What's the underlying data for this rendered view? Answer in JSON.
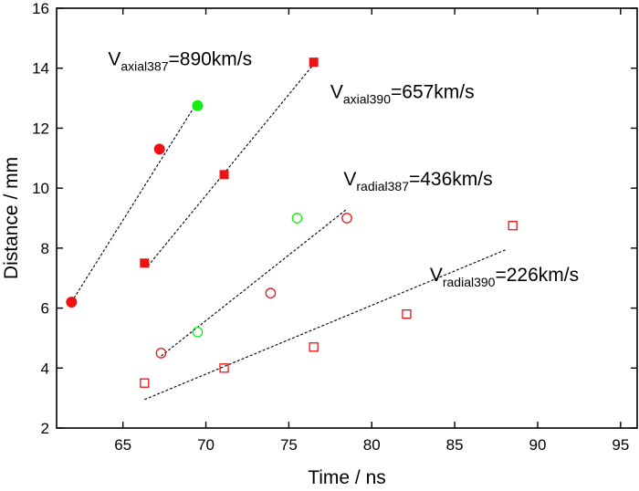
{
  "chart_data": {
    "type": "scatter",
    "title": "",
    "xlabel": "Time / ns",
    "ylabel": "Distance / mm",
    "xlim": [
      61,
      96
    ],
    "ylim": [
      2,
      16
    ],
    "xticks": [
      65,
      70,
      75,
      80,
      85,
      90,
      95
    ],
    "yticks": [
      2,
      4,
      6,
      8,
      10,
      12,
      14,
      16
    ],
    "grid": false,
    "legend": "none",
    "series": [
      {
        "id": "axial387-red",
        "marker": "filled-circle",
        "color": "#ee1111",
        "points": [
          [
            61.9,
            6.2
          ],
          [
            67.2,
            11.3
          ]
        ]
      },
      {
        "id": "axial387-green",
        "marker": "filled-circle",
        "color": "#11ee11",
        "points": [
          [
            69.5,
            12.75
          ]
        ]
      },
      {
        "id": "axial390",
        "marker": "filled-square",
        "color": "#ee1111",
        "points": [
          [
            66.3,
            7.5
          ],
          [
            71.1,
            10.45
          ],
          [
            76.5,
            14.2
          ]
        ]
      },
      {
        "id": "radial387-red",
        "marker": "open-circle",
        "color": "#ee1111",
        "points": [
          [
            67.3,
            4.5
          ],
          [
            73.9,
            6.5
          ],
          [
            78.5,
            9.0
          ]
        ]
      },
      {
        "id": "radial387-green",
        "marker": "open-circle",
        "color": "#11ee11",
        "points": [
          [
            69.5,
            5.2
          ],
          [
            75.5,
            9.0
          ]
        ]
      },
      {
        "id": "radial390",
        "marker": "open-square",
        "color": "#ee1111",
        "points": [
          [
            66.3,
            3.5
          ],
          [
            71.1,
            4.0
          ],
          [
            76.5,
            4.7
          ],
          [
            82.1,
            5.8
          ],
          [
            88.5,
            8.75
          ]
        ]
      }
    ],
    "fit_lines": [
      {
        "id": "axial387",
        "from": [
          61.9,
          6.2
        ],
        "to": [
          69.4,
          12.8
        ]
      },
      {
        "id": "axial390",
        "from": [
          66.5,
          7.4
        ],
        "to": [
          76.6,
          14.2
        ]
      },
      {
        "id": "radial387",
        "from": [
          67.3,
          4.4
        ],
        "to": [
          78.5,
          9.3
        ]
      },
      {
        "id": "radial390",
        "from": [
          66.3,
          2.95
        ],
        "to": [
          88.1,
          7.95
        ]
      }
    ],
    "annotations": [
      {
        "id": "axial387",
        "main": "V",
        "sub": "axial387",
        "value": "=890km/s",
        "x": 64.1,
        "y": 14.1
      },
      {
        "id": "axial390",
        "main": "V",
        "sub": "axial390",
        "value": "=657km/s",
        "x": 77.5,
        "y": 13.0
      },
      {
        "id": "radial387",
        "main": "V",
        "sub": "radial387",
        "value": "=436km/s",
        "x": 78.3,
        "y": 10.1
      },
      {
        "id": "radial390",
        "main": "V",
        "sub": "radial390",
        "value": "=226km/s",
        "x": 83.5,
        "y": 6.9
      }
    ]
  }
}
